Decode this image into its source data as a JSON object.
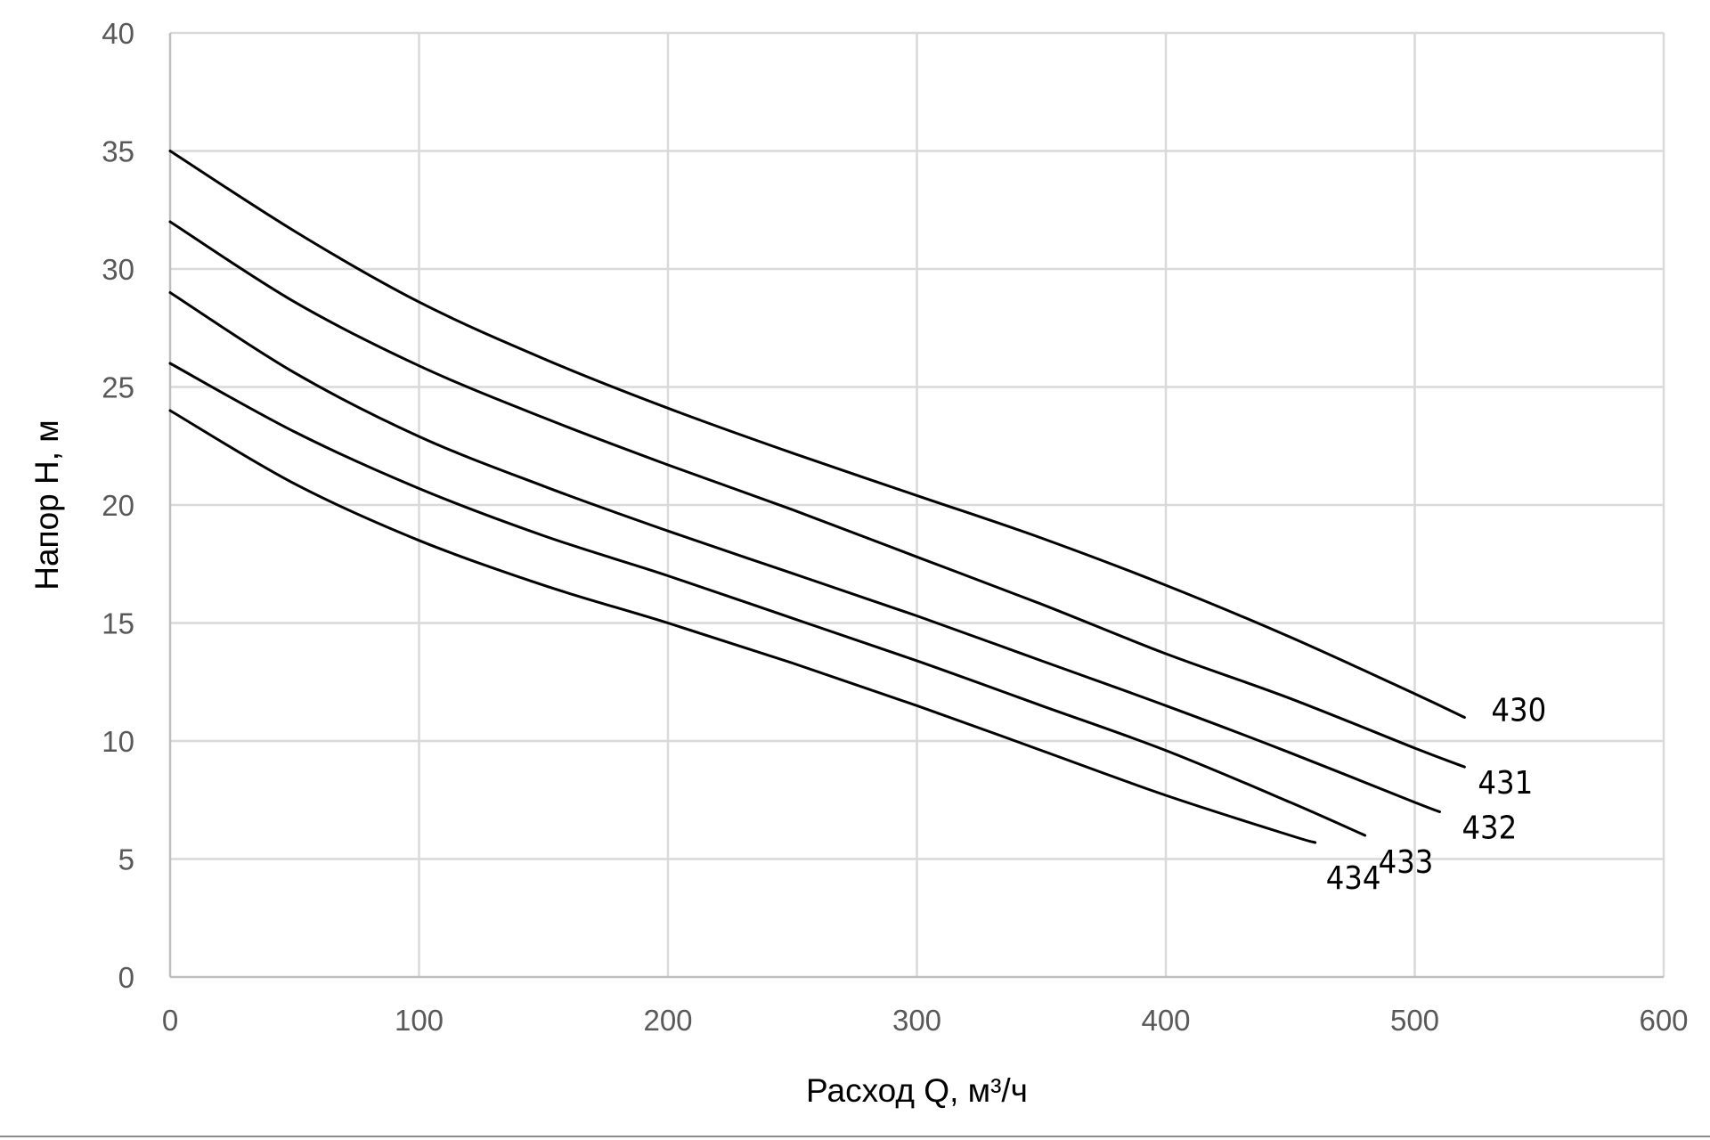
{
  "chart_data": {
    "type": "line",
    "title": "",
    "xlabel": "Расход Q, м³/ч",
    "ylabel": "Напор H, м",
    "xlim": [
      0,
      600
    ],
    "ylim": [
      0,
      40
    ],
    "xticks": [
      0,
      100,
      200,
      300,
      400,
      500,
      600
    ],
    "yticks": [
      0,
      5,
      10,
      15,
      20,
      25,
      30,
      35,
      40
    ],
    "grid": true,
    "legend": "none",
    "series": [
      {
        "name": "430",
        "color": "#000000",
        "x": [
          0,
          50,
          100,
          150,
          200,
          250,
          300,
          350,
          400,
          450,
          500,
          520
        ],
        "y": [
          35.0,
          31.6,
          28.6,
          26.2,
          24.1,
          22.2,
          20.4,
          18.6,
          16.6,
          14.4,
          12.0,
          11.0
        ]
      },
      {
        "name": "431",
        "color": "#000000",
        "x": [
          0,
          50,
          100,
          150,
          200,
          250,
          300,
          350,
          400,
          450,
          500,
          520
        ],
        "y": [
          32.0,
          28.6,
          25.9,
          23.7,
          21.7,
          19.8,
          17.8,
          15.8,
          13.7,
          11.8,
          9.7,
          8.9
        ]
      },
      {
        "name": "432",
        "color": "#000000",
        "x": [
          0,
          50,
          100,
          150,
          200,
          250,
          300,
          350,
          400,
          450,
          500,
          510
        ],
        "y": [
          29.0,
          25.6,
          22.9,
          20.8,
          18.9,
          17.1,
          15.3,
          13.4,
          11.5,
          9.5,
          7.4,
          7.0
        ]
      },
      {
        "name": "433",
        "color": "#000000",
        "x": [
          0,
          50,
          100,
          150,
          200,
          250,
          300,
          350,
          400,
          450,
          480
        ],
        "y": [
          26.0,
          23.1,
          20.7,
          18.7,
          17.0,
          15.2,
          13.4,
          11.5,
          9.6,
          7.4,
          6.0
        ]
      },
      {
        "name": "434",
        "color": "#000000",
        "x": [
          0,
          50,
          100,
          150,
          200,
          250,
          300,
          350,
          400,
          450,
          460
        ],
        "y": [
          24.0,
          20.9,
          18.5,
          16.6,
          15.0,
          13.3,
          11.5,
          9.6,
          7.7,
          6.0,
          5.7
        ]
      }
    ]
  }
}
